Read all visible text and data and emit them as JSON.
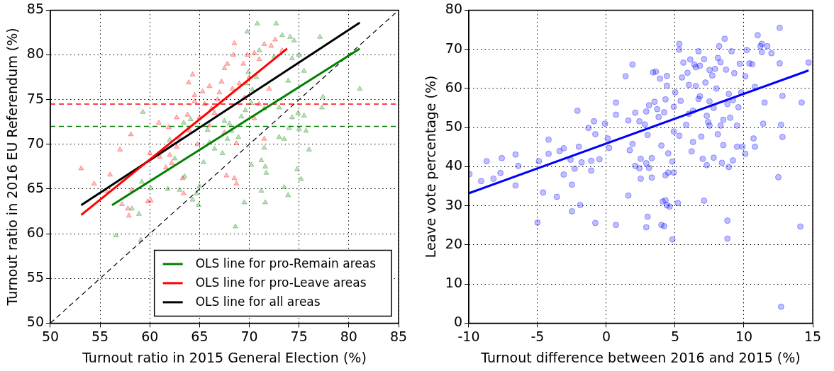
{
  "chart_data": [
    {
      "type": "scatter",
      "xlabel": "Turnout ratio in 2015 General Election (%)",
      "ylabel": "Turnout ratio in 2016 EU Referendum (%)",
      "xlim": [
        50,
        85
      ],
      "ylim": [
        50,
        85
      ],
      "xticks": [
        50,
        55,
        60,
        65,
        70,
        75,
        80,
        85
      ],
      "yticks": [
        50,
        55,
        60,
        65,
        70,
        75,
        80,
        85
      ],
      "grid": true,
      "legend": "bottom right",
      "ref_lines": [
        {
          "axis": "y",
          "value": 74.5,
          "color": "#ff0000",
          "line_style": "dashed"
        },
        {
          "axis": "y",
          "value": 72,
          "color": "#007f00",
          "line_style": "dashed"
        }
      ],
      "series": [
        {
          "type": "scatter",
          "marker": "triangle",
          "color": "#008000",
          "x": [
            70.8,
            72.7,
            69.8,
            73.3,
            74.1,
            74.5,
            77.1,
            71.0,
            72.5,
            75.0,
            74.3,
            75.5,
            73.9,
            81.1,
            77.4,
            77.3,
            71.5,
            73.0,
            74.9,
            75.5,
            74.3,
            74.0,
            75.0,
            75.7,
            73.0,
            73.5,
            76.0,
            71.5,
            70.2,
            71.2,
            71.6,
            71.7,
            74.8,
            75.2,
            73.5,
            73.9,
            71.2,
            71.6,
            69.5,
            68.6,
            65.0,
            64.7,
            64.3,
            64.9,
            63.0,
            61.8,
            60.1,
            59.2,
            58.2,
            58.9,
            56.6,
            59.1,
            59.3,
            63.4,
            64.1,
            62.0,
            62.5,
            63.5,
            65.4,
            66.5,
            67.3,
            67.8,
            68.0,
            68.2,
            67.5,
            69.2,
            69.6,
            70.2,
            70.3,
            69.7,
            69.9,
            70.7,
            68.9,
            66.0,
            65.8
          ],
          "values": [
            83.5,
            83.5,
            82.6,
            82.2,
            82.0,
            81.6,
            82.0,
            80.5,
            79.8,
            80.0,
            79.6,
            78.2,
            77.1,
            76.2,
            75.3,
            74.1,
            74.0,
            74.1,
            73.5,
            73.2,
            73.0,
            71.8,
            71.7,
            71.5,
            70.8,
            70.6,
            69.4,
            69.6,
            67.7,
            68.2,
            67.5,
            66.8,
            67.2,
            66.1,
            65.2,
            64.3,
            64.8,
            63.5,
            63.5,
            60.8,
            65.3,
            64.5,
            63.8,
            63.2,
            64.9,
            65.0,
            65.1,
            65.8,
            62.8,
            62.2,
            59.8,
            59.3,
            73.6,
            72.4,
            72.8,
            70.5,
            68.4,
            66.4,
            68.0,
            69.5,
            69.0,
            70.6,
            72.3,
            71.5,
            72.6,
            73.1,
            73.8,
            74.6,
            76.1,
            76.8,
            78.1,
            77.5,
            70.8,
            70.2,
            71.6
          ]
        },
        {
          "type": "scatter",
          "marker": "triangle",
          "color": "#ff0000",
          "x": [
            53.1,
            54.4,
            56.0,
            55.6,
            57.2,
            57.8,
            57.9,
            58.2,
            59.8,
            60.1,
            58.1,
            57.0,
            60.0,
            61.0,
            61.6,
            62.2,
            62.0,
            63.3,
            63.4,
            62.7,
            60.9,
            61.9,
            62.7,
            63.8,
            64.5,
            63.9,
            64.3,
            64.5,
            65.3,
            66.0,
            65.5,
            66.2,
            66.8,
            67.2,
            67.5,
            67.8,
            68.5,
            68.4,
            69.4,
            69.8,
            70.5,
            71.0,
            71.5,
            72.2,
            72.6,
            73.3,
            70.0,
            69.0,
            68.3,
            67.0,
            66.5,
            65.0,
            64.0,
            63.0,
            64.8,
            66.0,
            67.5,
            68.7,
            68.5,
            68.7,
            67.7,
            71.5,
            70.5,
            72.0,
            71.0,
            69.5
          ],
          "values": [
            67.3,
            65.6,
            66.6,
            64.8,
            63.3,
            62.8,
            62.0,
            64.9,
            63.6,
            63.7,
            71.1,
            69.4,
            69.0,
            68.6,
            67.4,
            67.9,
            68.8,
            66.2,
            64.5,
            69.7,
            72.4,
            71.9,
            73.0,
            73.3,
            74.8,
            76.9,
            77.8,
            75.5,
            75.9,
            76.5,
            74.5,
            74.0,
            75.0,
            77.0,
            78.5,
            79.0,
            81.3,
            80.0,
            79.0,
            80.0,
            80.2,
            79.5,
            81.2,
            81.0,
            81.7,
            80.5,
            77.5,
            76.8,
            76.2,
            75.8,
            73.5,
            73.0,
            71.5,
            70.7,
            70.0,
            72.1,
            71.3,
            70.1,
            66.2,
            65.6,
            66.5,
            70.6,
            72.9,
            76.2,
            74.5,
            75.2
          ]
        },
        {
          "type": "line",
          "name": "OLS line for pro-Remain areas",
          "color": "#008000",
          "marker": "none",
          "x": [
            56.2,
            81.1
          ],
          "values": [
            63.2,
            80.7
          ]
        },
        {
          "type": "line",
          "name": "OLS line for pro-Leave areas",
          "color": "#ff0000",
          "marker": "none",
          "x": [
            53.1,
            73.8
          ],
          "values": [
            62.1,
            80.7
          ]
        },
        {
          "type": "line",
          "name": "OLS line for all areas",
          "color": "#000000",
          "marker": "none",
          "x": [
            53.1,
            81.1
          ],
          "values": [
            63.2,
            83.6
          ]
        },
        {
          "type": "line",
          "color": "#000000",
          "marker": "none",
          "line_style": "dashed",
          "x": [
            50,
            85
          ],
          "values": [
            50,
            85
          ]
        }
      ]
    },
    {
      "type": "scatter",
      "xlabel": "Turnout difference between 2016 and 2015 (%)",
      "ylabel": "Leave vote percentage (%)",
      "xlim": [
        -10,
        15
      ],
      "ylim": [
        0,
        80
      ],
      "xticks": [
        -10,
        -5,
        0,
        5,
        10,
        15
      ],
      "yticks": [
        0,
        10,
        20,
        30,
        40,
        50,
        60,
        70,
        80
      ],
      "grid": true,
      "series": [
        {
          "type": "scatter",
          "marker": "circle",
          "color": "#0000ff",
          "x": [
            -9.95,
            -9.1,
            -8.7,
            -8.2,
            -7.7,
            -7.6,
            -6.6,
            -6.6,
            -6.4,
            -5.0,
            -4.9,
            -4.6,
            -4.2,
            -4.2,
            -3.6,
            -3.4,
            -3.1,
            -3.1,
            -2.6,
            -2.5,
            -2.5,
            -2.3,
            -2.1,
            -2.0,
            -1.9,
            -1.8,
            -1.3,
            -1.1,
            -1.1,
            -0.9,
            -0.8,
            -0.8,
            -0.5,
            -0.1,
            0.1,
            0.2,
            0.7,
            0.7,
            0.7,
            1.4,
            1.6,
            1.6,
            1.7,
            1.9,
            1.9,
            2.1,
            2.1,
            2.4,
            2.4,
            2.5,
            2.5,
            2.8,
            2.9,
            2.9,
            2.9,
            3.0,
            3.0,
            3.1,
            3.1,
            3.3,
            3.3,
            3.4,
            3.5,
            3.6,
            3.7,
            3.8,
            3.9,
            4.0,
            4.0,
            4.1,
            4.2,
            4.2,
            4.3,
            4.3,
            4.3,
            4.4,
            4.4,
            4.4,
            4.5,
            4.5,
            4.6,
            4.8,
            4.8,
            4.9,
            4.9,
            4.9,
            5.0,
            5.2,
            5.3,
            5.3,
            5.3,
            5.4,
            5.5,
            5.6,
            5.8,
            5.9,
            6.0,
            6.1,
            6.2,
            6.3,
            6.3,
            6.4,
            6.5,
            6.5,
            6.7,
            6.7,
            6.8,
            6.9,
            7.0,
            7.1,
            7.1,
            7.2,
            7.3,
            7.4,
            7.5,
            7.5,
            7.7,
            7.8,
            7.9,
            8.1,
            8.1,
            8.2,
            8.3,
            8.4,
            8.5,
            8.6,
            8.7,
            8.8,
            8.8,
            8.9,
            8.9,
            9.0,
            9.1,
            9.2,
            9.3,
            9.5,
            9.6,
            9.7,
            9.9,
            10.1,
            10.1,
            10.2,
            10.4,
            10.6,
            10.7,
            10.8,
            10.8,
            11.0,
            11.2,
            11.3,
            11.3,
            11.4,
            11.5,
            11.7,
            12.0,
            12.5,
            12.6,
            12.6,
            12.7,
            12.7,
            12.8,
            12.8,
            14.1,
            14.2,
            14.7,
            7.8,
            8.5,
            7.3,
            9.2,
            8.0,
            6.8,
            9.5,
            7.5,
            8.3,
            6.0,
            9.8,
            8.8
          ],
          "values": [
            38.1,
            36.3,
            41.4,
            36.9,
            38.4,
            42.2,
            43.1,
            35.2,
            40.2,
            25.7,
            41.4,
            33.4,
            46.9,
            43.3,
            32.3,
            44.0,
            44.7,
            38.0,
            41.8,
            35.4,
            28.6,
            39.5,
            54.3,
            45.1,
            30.2,
            41.1,
            49.9,
            41.5,
            39.0,
            51.6,
            48.3,
            25.6,
            41.9,
            51.0,
            47.2,
            44.8,
            25.1,
            56.4,
            53.3,
            63.1,
            32.6,
            51.8,
            44.2,
            45.8,
            66.1,
            53.8,
            40.2,
            51.6,
            39.6,
            42.0,
            36.9,
            50.8,
            54.1,
            40.9,
            24.5,
            27.2,
            48.1,
            39.7,
            55.7,
            37.2,
            42.2,
            64.1,
            56.6,
            64.3,
            54.7,
            52.7,
            62.5,
            45.4,
            25.1,
            31.1,
            24.8,
            53.9,
            57.2,
            37.8,
            31.4,
            30.1,
            63.2,
            60.7,
            43.4,
            38.5,
            29.8,
            41.3,
            21.4,
            55.3,
            38.5,
            49.0,
            59.0,
            30.7,
            47.9,
            71.4,
            69.9,
            56.8,
            62.8,
            66.6,
            50.7,
            64.0,
            60.9,
            67.4,
            43.9,
            54.3,
            46.3,
            66.1,
            65.4,
            60.6,
            57.3,
            69.5,
            65.8,
            47.7,
            42.0,
            31.3,
            67.5,
            61.5,
            40.4,
            51.4,
            56.7,
            64.7,
            63.3,
            42.3,
            65.0,
            48.3,
            67.8,
            70.8,
            66.7,
            41.0,
            45.5,
            72.7,
            64.8,
            26.2,
            21.6,
            39.9,
            58.6,
            52.5,
            69.5,
            41.6,
            63.9,
            45.1,
            55.2,
            66.3,
            45.1,
            43.3,
            63.1,
            69.8,
            66.4,
            66.2,
            47.2,
            45.1,
            60.4,
            73.6,
            70.8,
            71.4,
            69.3,
            51.0,
            56.4,
            70.8,
            69.0,
            37.3,
            75.5,
            66.4,
            50.7,
            4.2,
            47.6,
            58.1,
            24.7,
            56.4,
            66.6,
            55.0,
            52.0,
            53.0,
            57.0,
            60.0,
            58.0,
            50.5,
            50.5,
            50.5,
            53.5,
            59.0,
            56.0
          ]
        },
        {
          "type": "line",
          "color": "#0000ff",
          "marker": "none",
          "x": [
            -10,
            14.7
          ],
          "values": [
            33.2,
            64.6
          ]
        }
      ]
    }
  ]
}
